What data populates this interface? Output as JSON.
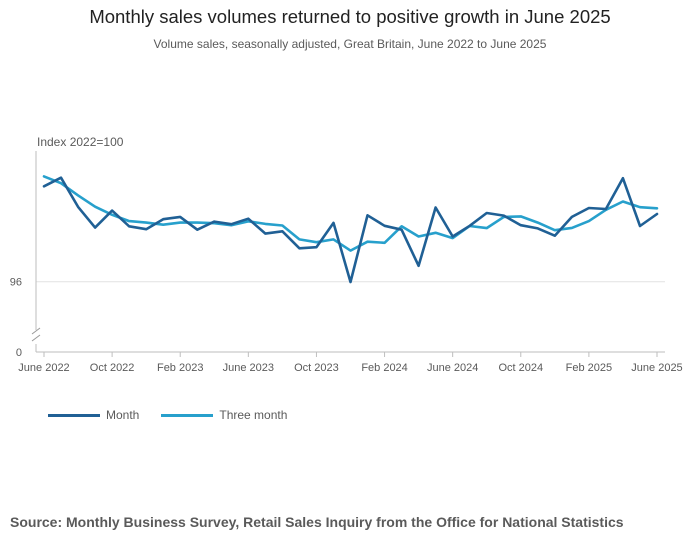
{
  "title": "Monthly sales volumes returned to positive growth in June 2025",
  "subtitle": "Volume sales, seasonally adjusted, Great Britain, June 2022 to June 2025",
  "source": "Source: Monthly Business Survey, Retail Sales Inquiry from the Office for National Statistics",
  "colors": {
    "month": "#206095",
    "three_month": "#27a0cc",
    "grid": "#e2e2e2",
    "axis": "#bebebe"
  },
  "chart_data": {
    "type": "line",
    "ylabel": "Index 2022=100",
    "ylim_zoom": [
      94.0,
      101.0
    ],
    "y_ticks": [
      {
        "value": 96,
        "label": "96"
      },
      {
        "value": 0,
        "label": "0"
      }
    ],
    "axis_break": true,
    "x_tick_labels": [
      {
        "index": 0,
        "label": "June 2022"
      },
      {
        "index": 4,
        "label": "Oct 2022"
      },
      {
        "index": 8,
        "label": "Feb 2023"
      },
      {
        "index": 12,
        "label": "June 2023"
      },
      {
        "index": 16,
        "label": "Oct 2023"
      },
      {
        "index": 20,
        "label": "Feb 2024"
      },
      {
        "index": 24,
        "label": "June 2024"
      },
      {
        "index": 28,
        "label": "Oct 2024"
      },
      {
        "index": 32,
        "label": "Feb 2025"
      },
      {
        "index": 36,
        "label": "June 2025"
      }
    ],
    "categories": [
      "Jun 2022",
      "Jul 2022",
      "Aug 2022",
      "Sep 2022",
      "Oct 2022",
      "Nov 2022",
      "Dec 2022",
      "Jan 2023",
      "Feb 2023",
      "Mar 2023",
      "Apr 2023",
      "May 2023",
      "Jun 2023",
      "Jul 2023",
      "Aug 2023",
      "Sep 2023",
      "Oct 2023",
      "Nov 2023",
      "Dec 2023",
      "Jan 2024",
      "Feb 2024",
      "Mar 2024",
      "Apr 2024",
      "May 2024",
      "Jun 2024",
      "Jul 2024",
      "Aug 2024",
      "Sep 2024",
      "Oct 2024",
      "Nov 2024",
      "Dec 2024",
      "Jan 2025",
      "Feb 2025",
      "Mar 2025",
      "Apr 2025",
      "May 2025",
      "Jun 2025"
    ],
    "series": [
      {
        "name": "Month",
        "values": [
          99.65,
          99.98,
          98.86,
          98.07,
          98.72,
          98.12,
          98.01,
          98.39,
          98.48,
          97.99,
          98.3,
          98.2,
          98.41,
          97.84,
          97.93,
          97.28,
          97.32,
          98.25,
          95.99,
          98.54,
          98.14,
          97.99,
          96.61,
          98.84,
          97.73,
          98.14,
          98.63,
          98.53,
          98.16,
          98.04,
          97.76,
          98.48,
          98.82,
          98.78,
          99.96,
          98.13,
          98.59
        ]
      },
      {
        "name": "Three month",
        "values": [
          100.03,
          99.77,
          99.3,
          98.87,
          98.56,
          98.32,
          98.26,
          98.18,
          98.26,
          98.26,
          98.24,
          98.16,
          98.31,
          98.21,
          98.15,
          97.62,
          97.51,
          97.62,
          97.19,
          97.53,
          97.49,
          98.12,
          97.73,
          97.87,
          97.67,
          98.13,
          98.05,
          98.48,
          98.5,
          98.26,
          97.97,
          98.06,
          98.32,
          98.75,
          99.07,
          98.85,
          98.81
        ]
      }
    ],
    "legend": [
      {
        "name": "Month",
        "position": "bottom-left"
      },
      {
        "name": "Three month",
        "position": "bottom-left"
      }
    ]
  }
}
